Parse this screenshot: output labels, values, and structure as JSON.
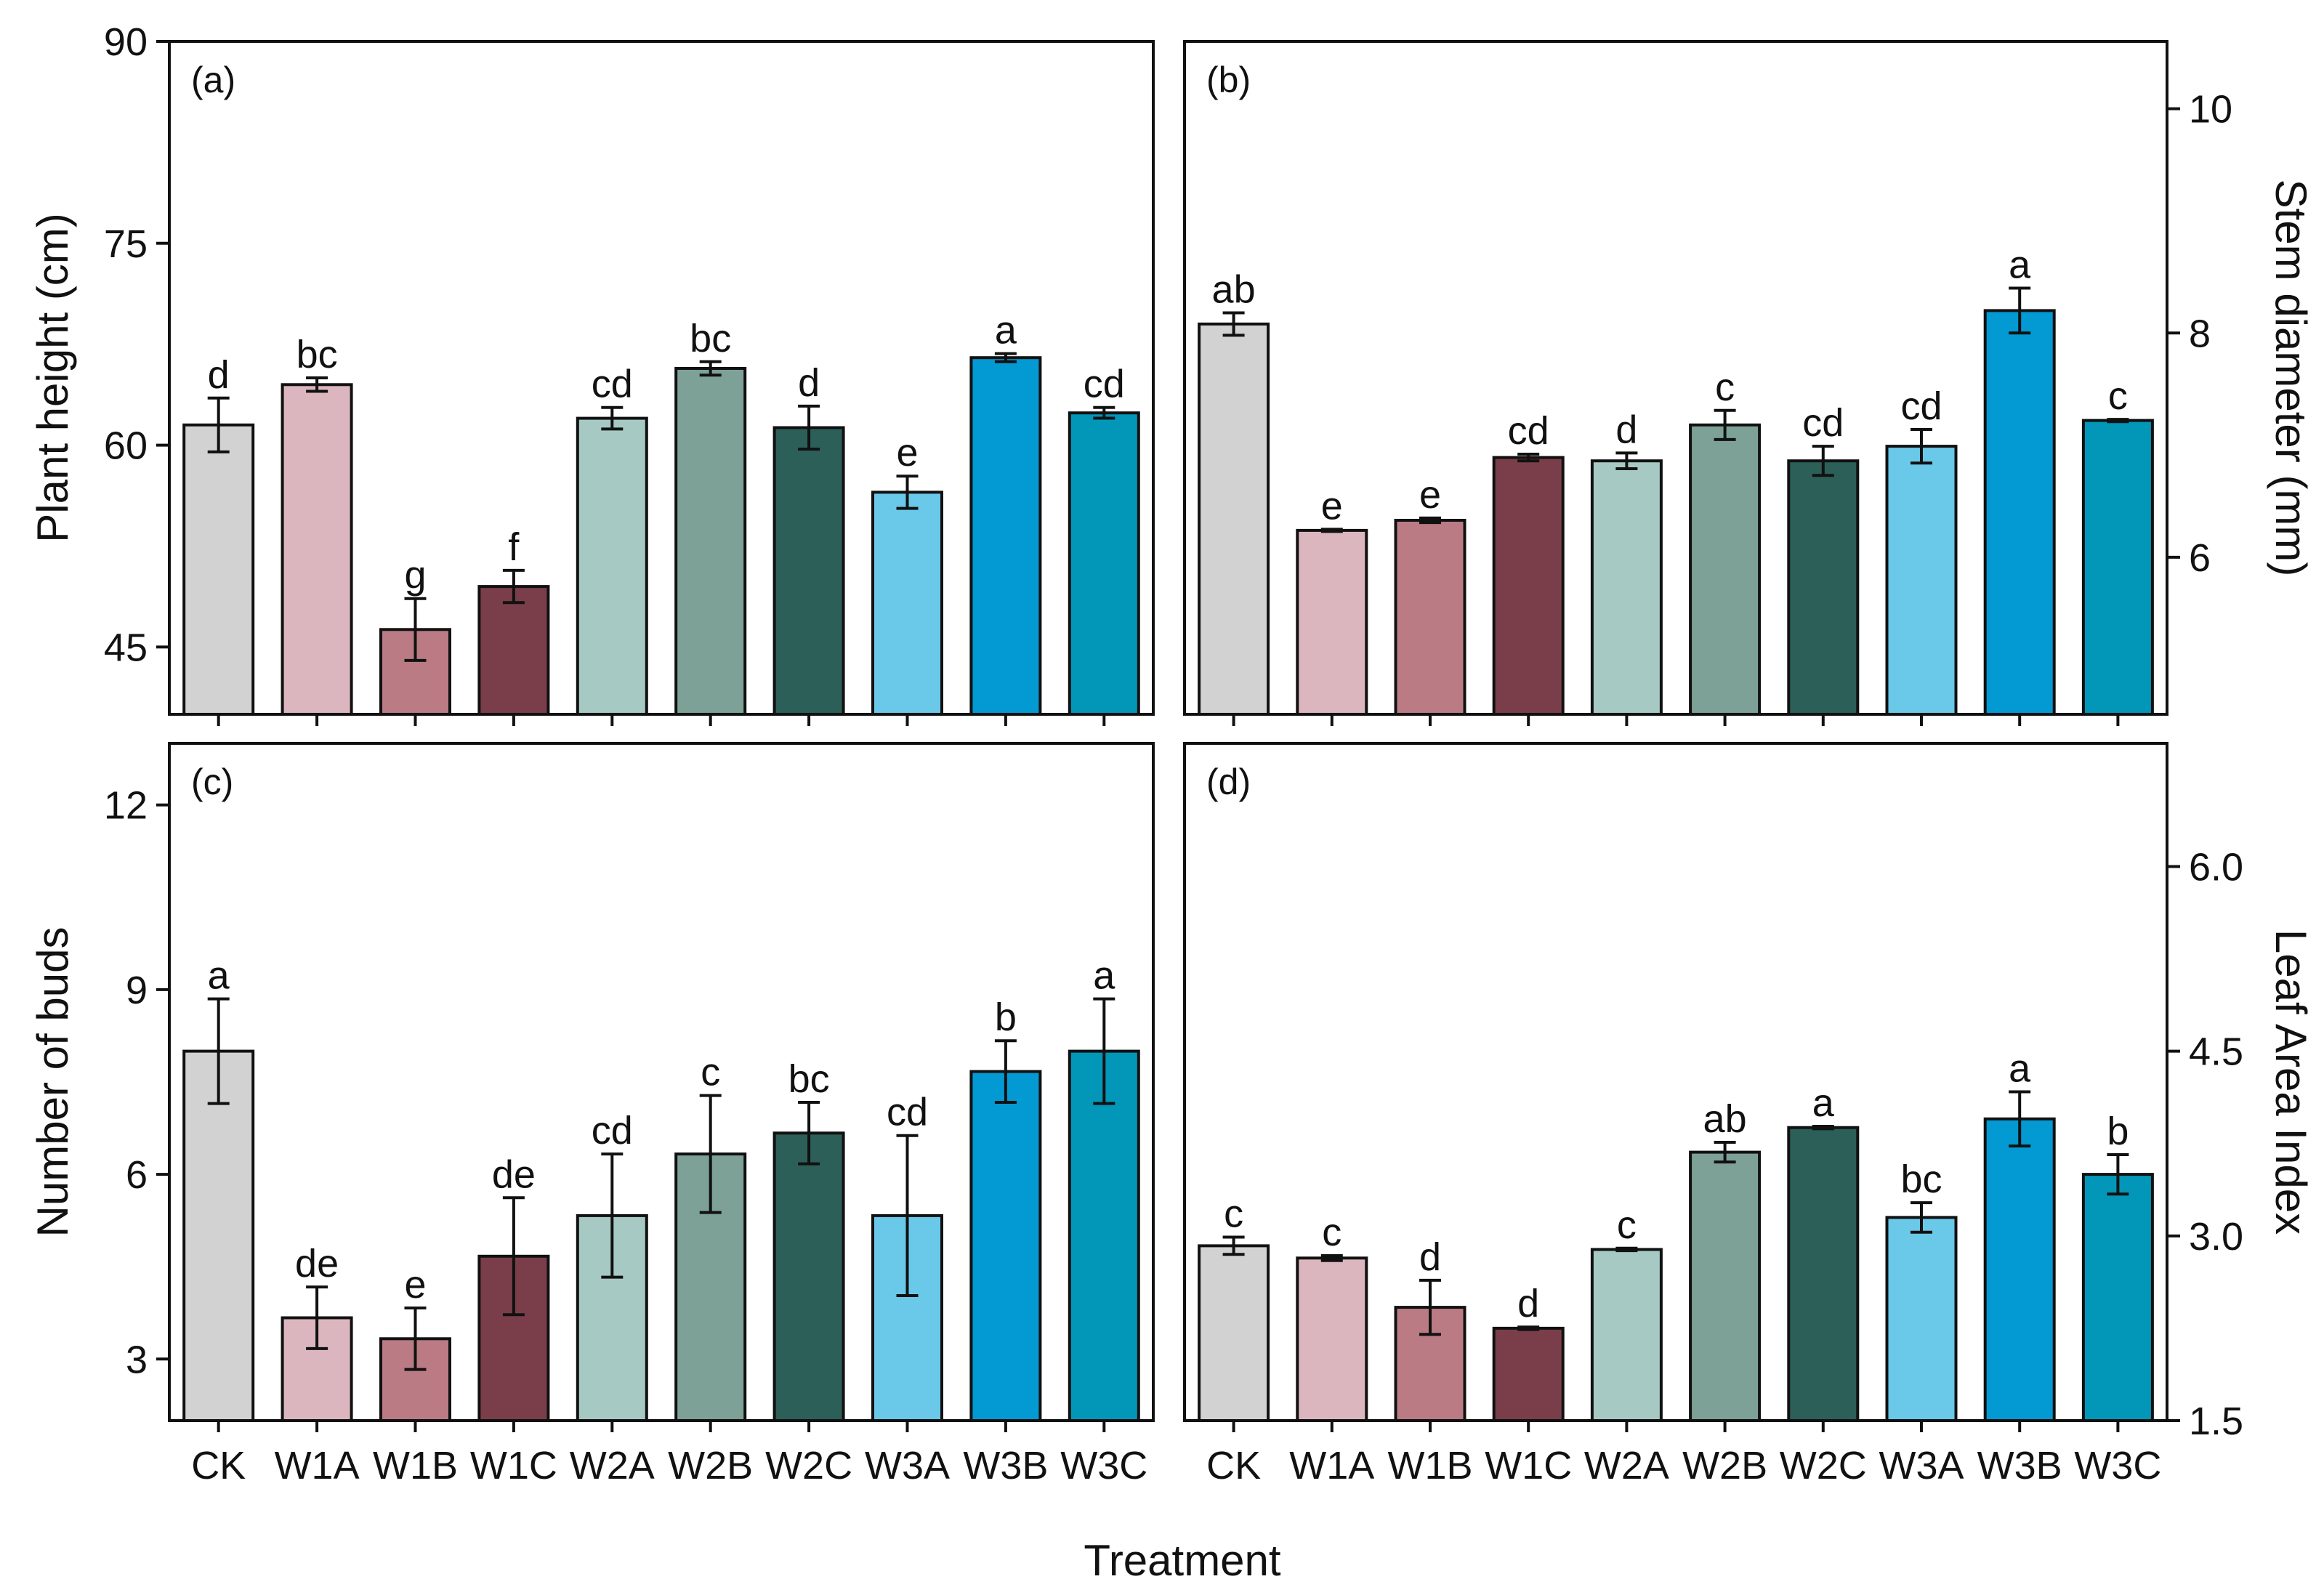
{
  "chart_data": {
    "type": "bar",
    "xlabel": "Treatment",
    "categories": [
      "CK",
      "W1A",
      "W1B",
      "W1C",
      "W2A",
      "W2B",
      "W2C",
      "W3A",
      "W3B",
      "W3C"
    ],
    "bar_colors": [
      "#d2d2d2",
      "#dcb6be",
      "#ba7b84",
      "#7a3e4a",
      "#a6cac3",
      "#7da196",
      "#2c5f58",
      "#6ac8e8",
      "#0399d3",
      "#0296b8"
    ],
    "panels": [
      {
        "label": "(a)",
        "ylabel": "Plant height (cm)",
        "y_axis_side": "left",
        "ylim": [
          40,
          90
        ],
        "yticks": [
          "45",
          "60",
          "75",
          "90"
        ],
        "values": [
          61.5,
          64.5,
          46.3,
          49.5,
          62.0,
          65.7,
          61.3,
          56.5,
          66.5,
          62.4
        ],
        "errors": [
          2.0,
          0.5,
          2.3,
          1.2,
          0.8,
          0.5,
          1.6,
          1.2,
          0.3,
          0.4
        ],
        "significance": [
          "d",
          "bc",
          "g",
          "f",
          "cd",
          "bc",
          "d",
          "e",
          "a",
          "cd"
        ]
      },
      {
        "label": "(b)",
        "ylabel": "Stem diameter (mm)",
        "y_axis_side": "right",
        "ylim": [
          4.6,
          10.6
        ],
        "yticks": [
          "6",
          "8",
          "10"
        ],
        "values": [
          8.08,
          6.24,
          6.33,
          6.89,
          6.86,
          7.18,
          6.86,
          6.99,
          8.2,
          7.22
        ],
        "errors": [
          0.1,
          0.01,
          0.02,
          0.03,
          0.07,
          0.13,
          0.13,
          0.15,
          0.2,
          0.01
        ],
        "significance": [
          "ab",
          "e",
          "e",
          "cd",
          "d",
          "c",
          "cd",
          "cd",
          "a",
          "c"
        ]
      },
      {
        "label": "(c)",
        "ylabel": "Number of buds",
        "y_axis_side": "left",
        "ylim": [
          2,
          13
        ],
        "yticks": [
          "3",
          "6",
          "9",
          "12"
        ],
        "values": [
          8.0,
          3.67,
          3.33,
          4.67,
          5.33,
          6.33,
          6.67,
          5.33,
          7.67,
          8.0
        ],
        "errors": [
          0.85,
          0.5,
          0.5,
          0.95,
          1.0,
          0.95,
          0.5,
          1.3,
          0.5,
          0.85
        ],
        "significance": [
          "a",
          "de",
          "e",
          "de",
          "cd",
          "c",
          "bc",
          "cd",
          "b",
          "a"
        ]
      },
      {
        "label": "(d)",
        "ylabel": "Leaf Area Index",
        "y_axis_side": "right",
        "ylim": [
          1.5,
          7.0
        ],
        "yticks": [
          "1.5",
          "3.0",
          "4.5",
          "6.0"
        ],
        "values": [
          2.92,
          2.82,
          2.42,
          2.25,
          2.89,
          3.68,
          3.88,
          3.15,
          3.95,
          3.5
        ],
        "errors": [
          0.07,
          0.02,
          0.22,
          0.01,
          0.01,
          0.08,
          0.01,
          0.12,
          0.22,
          0.16
        ],
        "significance": [
          "c",
          "c",
          "d",
          "d",
          "c",
          "ab",
          "a",
          "bc",
          "a",
          "b"
        ]
      }
    ]
  }
}
